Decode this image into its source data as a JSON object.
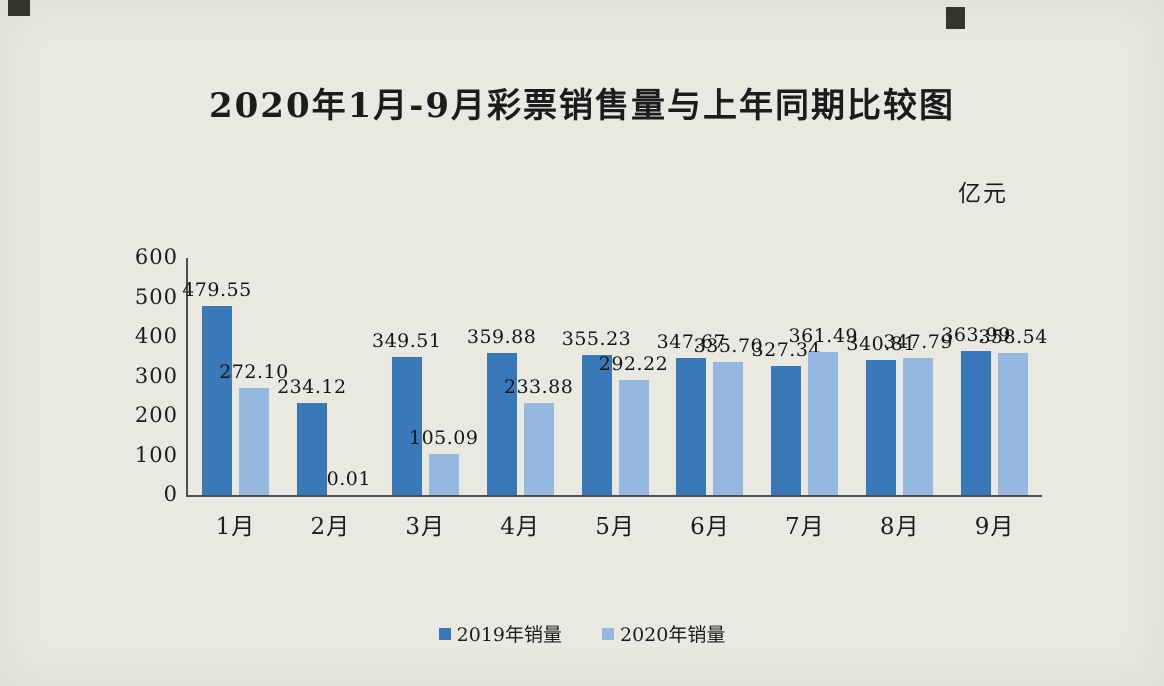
{
  "chart_data": {
    "type": "bar",
    "title": "2020年1月-9月彩票销售量与上年同期比较图",
    "unit_label": "亿元",
    "categories": [
      "1月",
      "2月",
      "3月",
      "4月",
      "5月",
      "6月",
      "7月",
      "8月",
      "9月"
    ],
    "series": [
      {
        "name": "2019年销量",
        "color": "#3a79b8",
        "values": [
          479.55,
          234.12,
          349.51,
          359.88,
          355.23,
          347.67,
          327.34,
          340.81,
          363.99
        ]
      },
      {
        "name": "2020年销量",
        "color": "#95b8e0",
        "values": [
          272.1,
          0.01,
          105.09,
          233.88,
          292.22,
          335.7,
          361.49,
          347.79,
          358.54
        ]
      }
    ],
    "xlabel": "",
    "ylabel": "",
    "ylim": [
      0,
      600
    ],
    "yticks": [
      0,
      100,
      200,
      300,
      400,
      500,
      600
    ],
    "grid": false,
    "legend_position": "bottom",
    "value_label_decimals": 2
  },
  "background_color": "#eae9e1"
}
